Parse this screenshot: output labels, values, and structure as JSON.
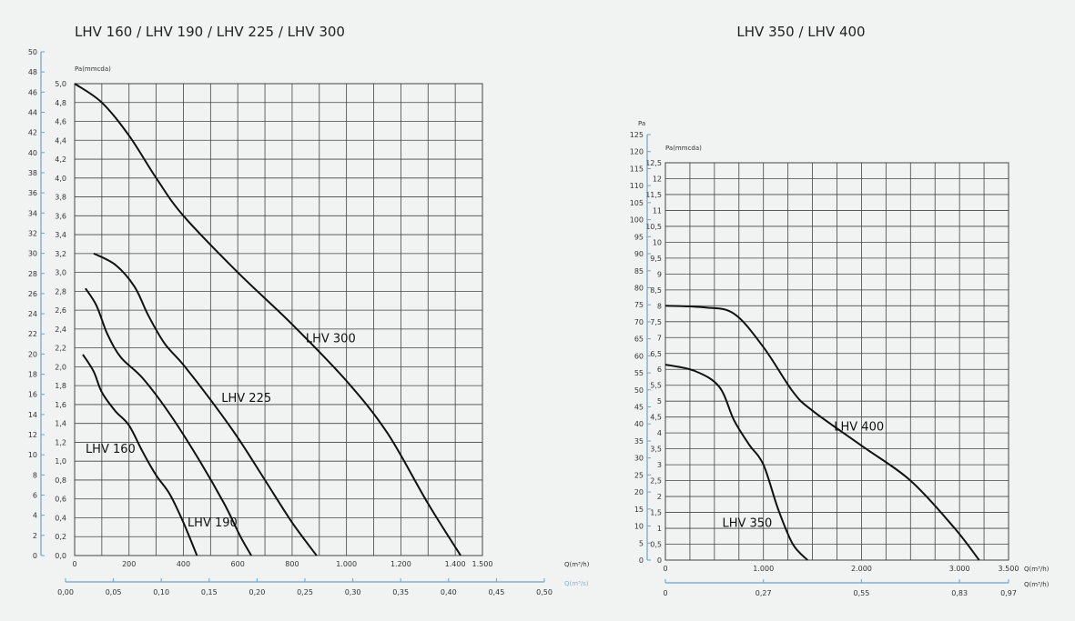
{
  "chart_data": [
    {
      "type": "line",
      "title": "LHV 160 / LHV 190 / LHV 225 / LHV 300",
      "ylabel": "Pa(mmcda)",
      "ylabel_pa_ticks": [
        "0",
        "2",
        "4",
        "6",
        "8",
        "10",
        "12",
        "14",
        "16",
        "18",
        "20",
        "22",
        "24",
        "26",
        "28",
        "30",
        "32",
        "34",
        "36",
        "38",
        "40",
        "42",
        "44",
        "46",
        "48",
        "50"
      ],
      "ylim": [
        0,
        5.0
      ],
      "y_ticks": [
        "0,0",
        "0,2",
        "0,4",
        "0,6",
        "0,8",
        "1,0",
        "1,2",
        "1,4",
        "1,6",
        "1,8",
        "2,0",
        "2,2",
        "2,4",
        "2,6",
        "2,8",
        "3,0",
        "3,2",
        "3,4",
        "3,6",
        "3,8",
        "4,0",
        "4,2",
        "4,4",
        "4,6",
        "4,8",
        "5,0"
      ],
      "xlim": [
        0,
        1500
      ],
      "x_ticks": [
        "0",
        "200",
        "400",
        "600",
        "800",
        "1.000",
        "1.200",
        "1.400",
        "1.500"
      ],
      "x_tick_values": [
        0,
        200,
        400,
        600,
        800,
        1000,
        1200,
        1400,
        1500
      ],
      "xlabel": "Q(m³/h)",
      "x2label": "Q(m³/s)",
      "x2_ticks": [
        "0,00",
        "0,05",
        "0,10",
        "0,15",
        "0,20",
        "0,25",
        "0,30",
        "0,35",
        "0,40",
        "0,45",
        "0,50"
      ],
      "grid": true,
      "line_color": "#111111",
      "grid_color": "#444444",
      "axis_color": "#6fa3c8",
      "series": [
        {
          "name": "LHV 160",
          "label": "LHV 160",
          "label_at": [
            40,
            1.09
          ],
          "points": [
            [
              30,
              2.13
            ],
            [
              70,
              1.95
            ],
            [
              100,
              1.73
            ],
            [
              150,
              1.53
            ],
            [
              200,
              1.38
            ],
            [
              250,
              1.1
            ],
            [
              300,
              0.85
            ],
            [
              350,
              0.65
            ],
            [
              400,
              0.35
            ],
            [
              450,
              0
            ]
          ]
        },
        {
          "name": "LHV 190",
          "label": "LHV 190",
          "label_at": [
            415,
            0.31
          ],
          "points": [
            [
              40,
              2.83
            ],
            [
              80,
              2.65
            ],
            [
              120,
              2.35
            ],
            [
              170,
              2.1
            ],
            [
              250,
              1.88
            ],
            [
              350,
              1.5
            ],
            [
              450,
              1.05
            ],
            [
              550,
              0.55
            ],
            [
              610,
              0.2
            ],
            [
              650,
              0
            ]
          ]
        },
        {
          "name": "LHV 225",
          "label": "LHV 225",
          "label_at": [
            540,
            1.63
          ],
          "points": [
            [
              70,
              3.2
            ],
            [
              150,
              3.08
            ],
            [
              220,
              2.85
            ],
            [
              270,
              2.55
            ],
            [
              330,
              2.25
            ],
            [
              400,
              2.02
            ],
            [
              500,
              1.65
            ],
            [
              600,
              1.25
            ],
            [
              700,
              0.8
            ],
            [
              800,
              0.35
            ],
            [
              890,
              0
            ]
          ]
        },
        {
          "name": "LHV 300",
          "label": "LHV 300",
          "label_at": [
            850,
            2.26
          ],
          "points": [
            [
              0,
              5.0
            ],
            [
              100,
              4.8
            ],
            [
              200,
              4.45
            ],
            [
              300,
              4.0
            ],
            [
              400,
              3.6
            ],
            [
              600,
              3.0
            ],
            [
              800,
              2.45
            ],
            [
              1000,
              1.85
            ],
            [
              1150,
              1.3
            ],
            [
              1300,
              0.55
            ],
            [
              1420,
              0
            ]
          ]
        }
      ]
    },
    {
      "type": "line",
      "title": "LHV 350 / LHV 400",
      "ylabel": "Pa(mmcda)",
      "ylabel_pa": "Pa",
      "ylabel_pa_ticks": [
        "0",
        "5",
        "10",
        "15",
        "20",
        "25",
        "30",
        "35",
        "40",
        "45",
        "50",
        "55",
        "60",
        "65",
        "70",
        "75",
        "80",
        "85",
        "90",
        "95",
        "100",
        "105",
        "110",
        "115",
        "120",
        "125"
      ],
      "ylim": [
        0,
        12.5
      ],
      "y_ticks": [
        "0",
        "0,5",
        "1",
        "1,5",
        "2",
        "2,5",
        "3",
        "3,5",
        "4",
        "4,5",
        "5",
        "5,5",
        "6",
        "6,5",
        "7",
        "7,5",
        "8",
        "8,5",
        "9",
        "9,5",
        "10",
        "10,5",
        "11",
        "11,5",
        "12",
        "12,5"
      ],
      "xlim": [
        0,
        3500
      ],
      "x_ticks": [
        "0",
        "1.000",
        "2.000",
        "3.000",
        "3.500"
      ],
      "x_tick_values": [
        0,
        1000,
        2000,
        3000,
        3500
      ],
      "xlabel": "Q(m³/h)",
      "x2label": "Q(m³/h)",
      "x2_ticks": [
        "0",
        "0,27",
        "0,55",
        "0,83",
        "0,97"
      ],
      "x2_tick_at": [
        0,
        1000,
        2000,
        3000,
        3500
      ],
      "grid": true,
      "line_color": "#111111",
      "grid_color": "#444444",
      "axis_color": "#6fa3c8",
      "series": [
        {
          "name": "LHV 350",
          "label": "LHV 350",
          "label_at": [
            580,
            1.05
          ],
          "points": [
            [
              0,
              6.15
            ],
            [
              300,
              5.95
            ],
            [
              550,
              5.45
            ],
            [
              700,
              4.4
            ],
            [
              850,
              3.65
            ],
            [
              1000,
              3.0
            ],
            [
              1150,
              1.6
            ],
            [
              1300,
              0.5
            ],
            [
              1450,
              0
            ]
          ]
        },
        {
          "name": "LHV 400",
          "label": "LHV 400",
          "label_at": [
            1720,
            4.08
          ],
          "points": [
            [
              0,
              8.0
            ],
            [
              400,
              7.95
            ],
            [
              700,
              7.75
            ],
            [
              1000,
              6.7
            ],
            [
              1300,
              5.3
            ],
            [
              1500,
              4.7
            ],
            [
              2000,
              3.6
            ],
            [
              2500,
              2.5
            ],
            [
              2950,
              1.0
            ],
            [
              3200,
              0
            ]
          ]
        }
      ]
    }
  ]
}
